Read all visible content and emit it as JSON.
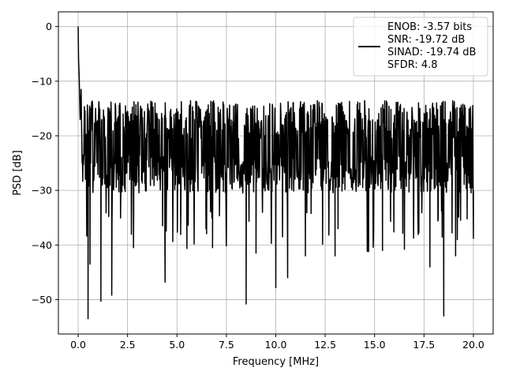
{
  "chart_data": {
    "type": "line",
    "xlabel": "Frequency [MHz]",
    "ylabel": "PSD [dB]",
    "xlim": [
      -1.0,
      21.0
    ],
    "ylim": [
      -56.3,
      2.7
    ],
    "grid": true,
    "xticks": [
      0.0,
      2.5,
      5.0,
      7.5,
      10.0,
      12.5,
      15.0,
      17.5,
      20.0
    ],
    "xtick_labels": [
      "0.0",
      "2.5",
      "5.0",
      "7.5",
      "10.0",
      "12.5",
      "15.0",
      "17.5",
      "20.0"
    ],
    "yticks": [
      0,
      -10,
      -20,
      -30,
      -40,
      -50
    ],
    "ytick_labels": [
      "0",
      "−10",
      "−20",
      "−30",
      "−40",
      "−50"
    ],
    "legend": {
      "placement": "top-right",
      "lines": [
        "ENOB: -3.57 bits",
        "SNR: -19.72 dB",
        "SINAD: -19.74 dB",
        "SFDR: 4.8"
      ]
    },
    "series": [
      {
        "color": "#000000",
        "noise_band": {
          "x_start": 0.05,
          "x_end": 20.0,
          "upper_dB": -13.5,
          "lower_dB": -30.5,
          "median_dB": -22.0
        },
        "peaks": [
          {
            "x": 0.0,
            "y": 0.0
          },
          {
            "x": 0.02,
            "y": -6.0
          },
          {
            "x": 0.05,
            "y": -9.0
          },
          {
            "x": 0.1,
            "y": -17.0
          },
          {
            "x": 0.15,
            "y": -11.5
          },
          {
            "x": 0.2,
            "y": -25.0
          }
        ],
        "dips": [
          {
            "x": 0.5,
            "y": -53.5
          },
          {
            "x": 0.6,
            "y": -43.5
          },
          {
            "x": 1.15,
            "y": -50.3
          },
          {
            "x": 1.7,
            "y": -49.2
          },
          {
            "x": 2.8,
            "y": -40.5
          },
          {
            "x": 4.4,
            "y": -46.8
          },
          {
            "x": 8.5,
            "y": -50.8
          },
          {
            "x": 10.0,
            "y": -47.8
          },
          {
            "x": 10.6,
            "y": -46.0
          },
          {
            "x": 18.5,
            "y": -53.0
          },
          {
            "x": 17.8,
            "y": -44.0
          },
          {
            "x": 9.0,
            "y": -41.5
          },
          {
            "x": 11.5,
            "y": -42.0
          },
          {
            "x": 13.0,
            "y": -42.0
          },
          {
            "x": 6.8,
            "y": -40.5
          },
          {
            "x": 15.4,
            "y": -41.0
          },
          {
            "x": 19.1,
            "y": -42.0
          },
          {
            "x": 20.0,
            "y": -38.8
          }
        ]
      }
    ]
  }
}
